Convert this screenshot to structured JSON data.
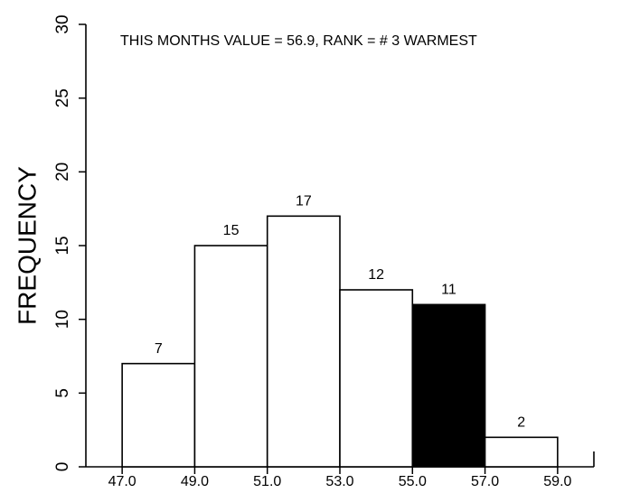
{
  "chart_data": {
    "type": "histogram",
    "title": "THIS MONTHS VALUE =  56.9, RANK = #  3 WARMEST",
    "y_label": "FREQUENCY",
    "bins": [
      47,
      49,
      51,
      53,
      55,
      57,
      59
    ],
    "values": [
      7,
      15,
      17,
      12,
      11,
      2
    ],
    "bar_colors": [
      "#ffffff",
      "#ffffff",
      "#ffffff",
      "#ffffff",
      "#000000",
      "#ffffff"
    ],
    "xlim": [
      46,
      60
    ],
    "xticks": [
      {
        "value": 47,
        "label": "47.0"
      },
      {
        "value": 49,
        "label": "49.0"
      },
      {
        "value": 51,
        "label": "51.0"
      },
      {
        "value": 53,
        "label": "53.0"
      },
      {
        "value": 55,
        "label": "55.0"
      },
      {
        "value": 57,
        "label": "57.0"
      },
      {
        "value": 59,
        "label": "59.0"
      }
    ],
    "ylim": [
      0,
      30
    ],
    "yticks": [
      0,
      5,
      10,
      15,
      20,
      25,
      30
    ],
    "grid": false
  }
}
